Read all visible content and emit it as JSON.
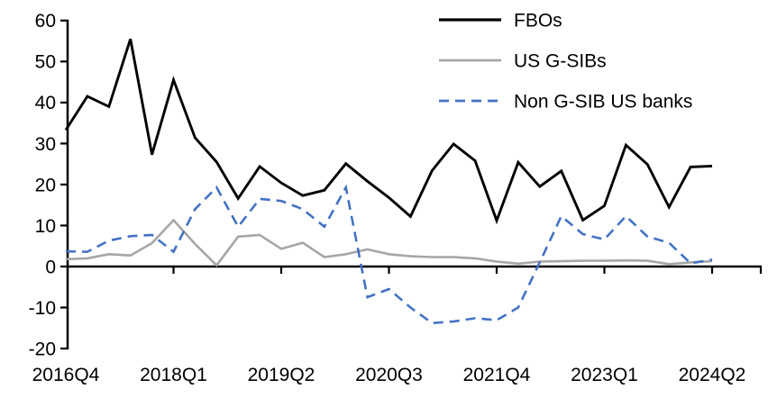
{
  "chart_data": {
    "type": "line",
    "title": "",
    "xlabel": "",
    "ylabel": "",
    "categories": [
      "2016Q4",
      "2017Q1",
      "2017Q2",
      "2017Q3",
      "2017Q4",
      "2018Q1",
      "2018Q2",
      "2018Q3",
      "2018Q4",
      "2019Q1",
      "2019Q2",
      "2019Q3",
      "2019Q4",
      "2020Q1",
      "2020Q2",
      "2020Q3",
      "2020Q4",
      "2021Q1",
      "2021Q2",
      "2021Q3",
      "2021Q4",
      "2022Q1",
      "2022Q2",
      "2022Q3",
      "2022Q4",
      "2023Q1",
      "2023Q2",
      "2023Q3",
      "2023Q4",
      "2024Q1",
      "2024Q2"
    ],
    "series": [
      {
        "name": "FBOs",
        "color": "#000000",
        "line_style": "solid",
        "values": [
          33.3,
          41.5,
          39.0,
          55.5,
          27.3,
          45.5,
          31.4,
          25.5,
          16.6,
          24.4,
          20.4,
          17.3,
          18.6,
          25.1,
          20.8,
          16.8,
          12.2,
          23.4,
          29.9,
          25.8,
          11.2,
          25.4,
          19.5,
          23.3,
          11.3,
          14.8,
          29.6,
          24.9,
          14.5,
          24.3,
          24.5
        ]
      },
      {
        "name": "US G-SIBs",
        "color": "#A6A6A6",
        "line_style": "solid",
        "values": [
          1.8,
          2.0,
          3.0,
          2.7,
          5.7,
          11.3,
          5.5,
          0.3,
          7.3,
          7.7,
          4.3,
          5.8,
          2.3,
          3.0,
          4.2,
          3.0,
          2.5,
          2.3,
          2.3,
          2.0,
          1.2,
          0.7,
          1.2,
          1.3,
          1.4,
          1.4,
          1.5,
          1.4,
          0.6,
          1.0,
          1.3
        ]
      },
      {
        "name": "Non G-SIB US banks",
        "color": "#4472C4",
        "line_style": "dashed",
        "values": [
          3.7,
          3.6,
          6.3,
          7.4,
          7.7,
          3.6,
          14.0,
          19.3,
          9.7,
          16.5,
          16.0,
          14.0,
          9.7,
          19.3,
          -7.5,
          -5.5,
          -10.0,
          -13.8,
          -13.4,
          -12.6,
          -13.1,
          -10.0,
          1.0,
          12.3,
          7.9,
          6.6,
          12.3,
          7.3,
          5.8,
          0.8,
          1.7
        ]
      }
    ],
    "ylim": [
      -20,
      60
    ],
    "y_tick_labels": [
      "60",
      "50",
      "40",
      "30",
      "20",
      "10",
      "0",
      "-10",
      "-20"
    ],
    "y_tick_values": [
      60,
      50,
      40,
      30,
      20,
      10,
      0,
      -10,
      -20
    ],
    "x_tick_labels": [
      "2016Q4",
      "2018Q1",
      "2019Q2",
      "2020Q3",
      "2021Q4",
      "2023Q1",
      "2024Q2"
    ],
    "x_tick_every": 5,
    "grid": false,
    "legend_position": "top-right",
    "axis_color": "#000000",
    "x_axis_at_value": 0
  }
}
